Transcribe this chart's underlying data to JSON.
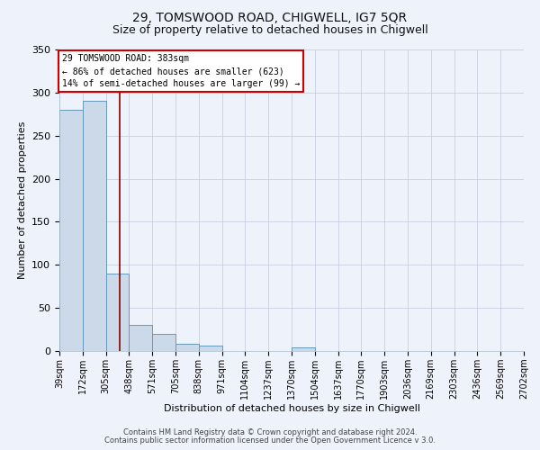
{
  "title": "29, TOMSWOOD ROAD, CHIGWELL, IG7 5QR",
  "subtitle": "Size of property relative to detached houses in Chigwell",
  "xlabel": "Distribution of detached houses by size in Chigwell",
  "ylabel": "Number of detached properties",
  "bin_edges": [
    39,
    172,
    305,
    438,
    571,
    705,
    838,
    971,
    1104,
    1237,
    1370,
    1504,
    1637,
    1770,
    1903,
    2036,
    2169,
    2303,
    2436,
    2569,
    2702
  ],
  "bin_labels": [
    "39sqm",
    "172sqm",
    "305sqm",
    "438sqm",
    "571sqm",
    "705sqm",
    "838sqm",
    "971sqm",
    "1104sqm",
    "1237sqm",
    "1370sqm",
    "1504sqm",
    "1637sqm",
    "1770sqm",
    "1903sqm",
    "2036sqm",
    "2169sqm",
    "2303sqm",
    "2436sqm",
    "2569sqm",
    "2702sqm"
  ],
  "bar_heights": [
    280,
    290,
    90,
    30,
    20,
    8,
    6,
    0,
    0,
    0,
    4,
    0,
    0,
    0,
    0,
    0,
    0,
    0,
    0,
    0,
    2
  ],
  "bar_color": "#ccd9e8",
  "bar_edge_color": "#6699bb",
  "property_line_x": 383,
  "property_line_color": "#8b0000",
  "ylim": [
    0,
    350
  ],
  "yticks": [
    0,
    50,
    100,
    150,
    200,
    250,
    300,
    350
  ],
  "annotation_line1": "29 TOMSWOOD ROAD: 383sqm",
  "annotation_line2": "← 86% of detached houses are smaller (623)",
  "annotation_line3": "14% of semi-detached houses are larger (99) →",
  "annotation_box_color": "#ffffff",
  "annotation_box_edge_color": "#cc0000",
  "footer_line1": "Contains HM Land Registry data © Crown copyright and database right 2024.",
  "footer_line2": "Contains public sector information licensed under the Open Government Licence v 3.0.",
  "bg_color": "#eef2fa",
  "grid_color": "#c8cfe0",
  "title_fontsize": 10,
  "subtitle_fontsize": 9,
  "axis_label_fontsize": 8,
  "tick_fontsize": 7,
  "footer_fontsize": 6
}
